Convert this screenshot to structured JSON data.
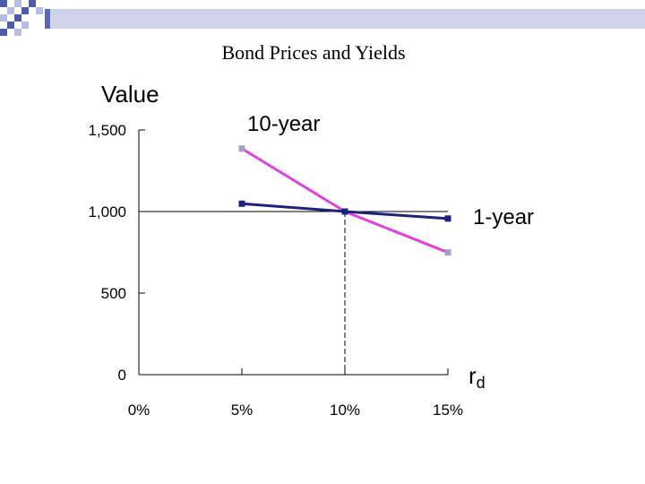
{
  "slide": {
    "title": "Bond Prices and Yields",
    "accent_color": "#5b6bb0"
  },
  "chart_data": {
    "type": "line",
    "title": "Bond Prices and Yields",
    "ylabel": "Value",
    "xlabel": "rd",
    "xlabel_main": "r",
    "xlabel_sub": "d",
    "x": [
      5,
      10,
      15
    ],
    "x_ticks": [
      0,
      5,
      10,
      15
    ],
    "x_tick_labels": [
      "0%",
      "5%",
      "10%",
      "15%"
    ],
    "y_ticks": [
      0,
      500,
      1000,
      1500
    ],
    "y_tick_labels": [
      "0",
      "500",
      "1,000",
      "1,500"
    ],
    "xlim": [
      0,
      15
    ],
    "ylim": [
      0,
      1500
    ],
    "grid": false,
    "legend": "labels next to lines",
    "series": [
      {
        "name": "10-year",
        "values": [
          1386,
          1000,
          749
        ],
        "color": "#e040e0",
        "marker_color": "#a0a0d0"
      },
      {
        "name": "1-year",
        "values": [
          1048,
          1000,
          957
        ],
        "color": "#1a237e",
        "marker_color": "#1a237e"
      }
    ],
    "reference_lines": {
      "horizontal_y": 1000,
      "vertical_x": 10
    }
  }
}
